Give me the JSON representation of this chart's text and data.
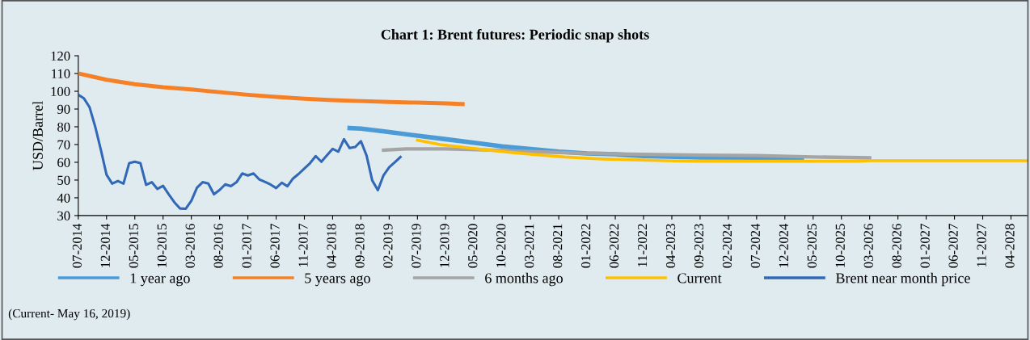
{
  "chart_data": {
    "type": "line",
    "title": "Chart 1: Brent futures: Periodic snap shots",
    "ylabel": "USD/Barrel",
    "xlim": [
      "2014-07",
      "2028-07"
    ],
    "ylim": [
      30,
      120
    ],
    "yticks": [
      30,
      40,
      50,
      60,
      70,
      80,
      90,
      100,
      110,
      120
    ],
    "xticks": [
      {
        "value": "2014-07",
        "label": "07-2014"
      },
      {
        "value": "2014-12",
        "label": "12-2014"
      },
      {
        "value": "2015-05",
        "label": "05-2015"
      },
      {
        "value": "2015-10",
        "label": "10-2015"
      },
      {
        "value": "2016-03",
        "label": "03-2016"
      },
      {
        "value": "2016-08",
        "label": "08-2016"
      },
      {
        "value": "2017-01",
        "label": "01-2017"
      },
      {
        "value": "2017-06",
        "label": "06-2017"
      },
      {
        "value": "2017-11",
        "label": "11-2017"
      },
      {
        "value": "2018-04",
        "label": "04-2018"
      },
      {
        "value": "2018-09",
        "label": "09-2018"
      },
      {
        "value": "2019-02",
        "label": "02-2019"
      },
      {
        "value": "2019-07",
        "label": "07-2019"
      },
      {
        "value": "2019-12",
        "label": "12-2019"
      },
      {
        "value": "2020-05",
        "label": "05-2020"
      },
      {
        "value": "2020-10",
        "label": "10-2020"
      },
      {
        "value": "2021-03",
        "label": "03-2021"
      },
      {
        "value": "2021-08",
        "label": "08-2021"
      },
      {
        "value": "2022-01",
        "label": "01-2022"
      },
      {
        "value": "2022-06",
        "label": "06-2022"
      },
      {
        "value": "2022-11",
        "label": "11-2022"
      },
      {
        "value": "2023-04",
        "label": "04-2023"
      },
      {
        "value": "2023-09",
        "label": "09-2023"
      },
      {
        "value": "2024-02",
        "label": "02-2024"
      },
      {
        "value": "2024-07",
        "label": "07-2024"
      },
      {
        "value": "2024-12",
        "label": "12-2024"
      },
      {
        "value": "2025-05",
        "label": "05-2025"
      },
      {
        "value": "2025-10",
        "label": "10-2025"
      },
      {
        "value": "2026-03",
        "label": "03-2026"
      },
      {
        "value": "2026-08",
        "label": "08-2026"
      },
      {
        "value": "2027-01",
        "label": "01-2027"
      },
      {
        "value": "2027-06",
        "label": "06-2027"
      },
      {
        "value": "2027-11",
        "label": "11-2027"
      },
      {
        "value": "2028-04",
        "label": "04-2028"
      }
    ],
    "series": [
      {
        "name": "1 year ago",
        "color": "#4a9bd8",
        "x": [
          "2018-07",
          "2018-09",
          "2019-02",
          "2019-07",
          "2019-12",
          "2020-05",
          "2020-10",
          "2021-03",
          "2021-08",
          "2022-01",
          "2022-06",
          "2022-11",
          "2023-09",
          "2024-07",
          "2025-03"
        ],
        "values": [
          79.3,
          79,
          77,
          75,
          73,
          71,
          69,
          67.5,
          66,
          65,
          64.5,
          63.5,
          62.7,
          62.6,
          62.5
        ]
      },
      {
        "name": "5 years ago",
        "color": "#f58025",
        "x": [
          "2014-07",
          "2014-12",
          "2015-05",
          "2015-10",
          "2016-03",
          "2016-08",
          "2017-01",
          "2017-06",
          "2017-11",
          "2018-04",
          "2018-09",
          "2019-02",
          "2019-07",
          "2019-12",
          "2020-03"
        ],
        "values": [
          110,
          106.5,
          104,
          102.3,
          101,
          99.5,
          98,
          96.8,
          95.8,
          95,
          94.5,
          94,
          93.6,
          93.2,
          92.8
        ]
      },
      {
        "name": "6 months ago",
        "color": "#a5a5a5",
        "x": [
          "2019-01",
          "2019-05",
          "2019-12",
          "2020-07",
          "2021-03",
          "2022-01",
          "2022-11",
          "2023-09",
          "2024-07",
          "2025-05",
          "2026-03"
        ],
        "values": [
          66.8,
          67.5,
          67.5,
          67,
          66,
          65,
          64.5,
          64,
          63.8,
          63,
          62.5
        ]
      },
      {
        "name": "Current",
        "color": "#ffc000",
        "x": [
          "2019-07",
          "2019-11",
          "2020-05",
          "2020-11",
          "2021-05",
          "2021-09",
          "2022-03",
          "2022-09",
          "2023-03",
          "2023-09",
          "2026-01",
          "2026-03",
          "2028-07"
        ],
        "values": [
          72.5,
          70,
          67.8,
          65.7,
          64,
          63,
          62,
          61.4,
          60.9,
          60.6,
          60.6,
          60.9,
          60.9
        ]
      },
      {
        "name": "Brent near month price",
        "color": "#3168b7",
        "x": [
          "2014-07",
          "2014-08",
          "2014-09",
          "2014-10",
          "2014-11",
          "2014-12",
          "2015-01",
          "2015-02",
          "2015-03",
          "2015-04",
          "2015-05",
          "2015-06",
          "2015-07",
          "2015-08",
          "2015-09",
          "2015-10",
          "2015-11",
          "2015-12",
          "2016-01",
          "2016-02",
          "2016-03",
          "2016-04",
          "2016-05",
          "2016-06",
          "2016-07",
          "2016-08",
          "2016-09",
          "2016-10",
          "2016-11",
          "2016-12",
          "2017-01",
          "2017-02",
          "2017-03",
          "2017-04",
          "2017-05",
          "2017-06",
          "2017-07",
          "2017-08",
          "2017-09",
          "2017-10",
          "2017-11",
          "2017-12",
          "2018-01",
          "2018-02",
          "2018-03",
          "2018-04",
          "2018-05",
          "2018-06",
          "2018-07",
          "2018-08",
          "2018-09",
          "2018-10",
          "2018-11",
          "2018-12",
          "2019-01",
          "2019-02",
          "2019-03",
          "2019-04"
        ],
        "values": [
          98,
          96,
          91,
          80,
          67,
          53,
          48,
          49.5,
          48,
          59.5,
          60.3,
          59.5,
          47.3,
          48.8,
          45,
          46.7,
          42,
          37.5,
          34,
          33.8,
          38.3,
          45.7,
          48.8,
          48,
          42,
          44.4,
          47.6,
          46.6,
          48.8,
          53.7,
          52.6,
          53.7,
          50.4,
          49,
          47.5,
          45.5,
          48.5,
          46.5,
          50.9,
          53.5,
          56.5,
          59.5,
          63.5,
          60.3,
          64,
          67.6,
          66,
          73,
          68,
          68.6,
          71.9,
          63.8,
          49.8,
          44.3,
          52.7,
          57.2,
          60,
          63
        ]
      }
    ],
    "legend": "bottom",
    "grid": false,
    "marker": "none",
    "line_style": "solid",
    "annotations": [
      "(Current- May 16, 2019)"
    ]
  }
}
